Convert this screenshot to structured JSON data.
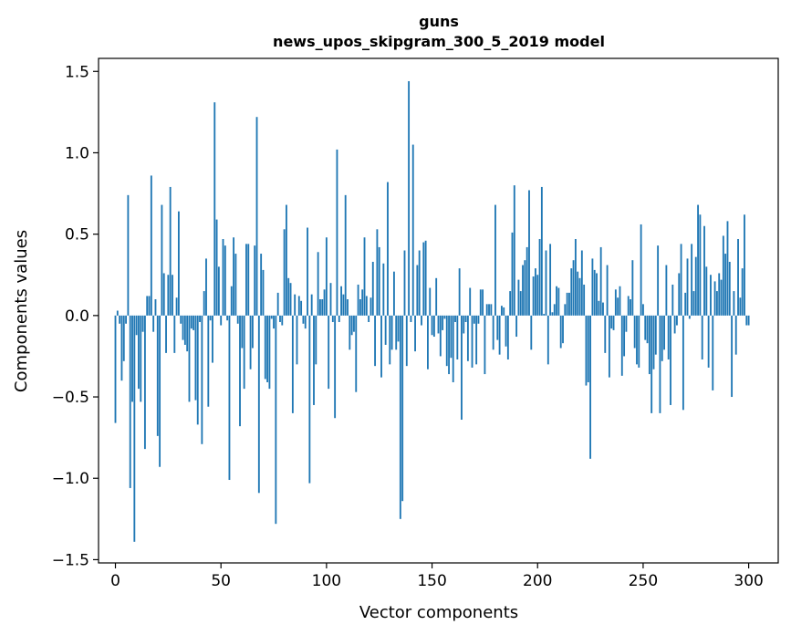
{
  "chart_data": {
    "type": "bar",
    "title": "guns",
    "subtitle": "news_upos_skipgram_300_5_2019 model",
    "xlabel": "Vector components",
    "ylabel": "Components values",
    "xlim": [
      -8,
      314
    ],
    "ylim": [
      -1.52,
      1.58
    ],
    "xticks": [
      0,
      50,
      100,
      150,
      200,
      250,
      300
    ],
    "yticks": [
      -1.5,
      -1.0,
      -0.5,
      0.0,
      0.5,
      1.0,
      1.5
    ],
    "ytick_labels": [
      "−1.5",
      "−1.0",
      "−0.5",
      "0.0",
      "0.5",
      "1.0",
      "1.5"
    ],
    "bar_color": "#1f77b4",
    "x": [
      0,
      1,
      2,
      3,
      4,
      5,
      6,
      7,
      8,
      9,
      10,
      11,
      12,
      13,
      14,
      15,
      16,
      17,
      18,
      19,
      20,
      21,
      22,
      23,
      24,
      25,
      26,
      27,
      28,
      29,
      30,
      31,
      32,
      33,
      34,
      35,
      36,
      37,
      38,
      39,
      40,
      41,
      42,
      43,
      44,
      45,
      46,
      47,
      48,
      49,
      50,
      51,
      52,
      53,
      54,
      55,
      56,
      57,
      58,
      59,
      60,
      61,
      62,
      63,
      64,
      65,
      66,
      67,
      68,
      69,
      70,
      71,
      72,
      73,
      74,
      75,
      76,
      77,
      78,
      79,
      80,
      81,
      82,
      83,
      84,
      85,
      86,
      87,
      88,
      89,
      90,
      91,
      92,
      93,
      94,
      95,
      96,
      97,
      98,
      99,
      100,
      101,
      102,
      103,
      104,
      105,
      106,
      107,
      108,
      109,
      110,
      111,
      112,
      113,
      114,
      115,
      116,
      117,
      118,
      119,
      120,
      121,
      122,
      123,
      124,
      125,
      126,
      127,
      128,
      129,
      130,
      131,
      132,
      133,
      134,
      135,
      136,
      137,
      138,
      139,
      140,
      141,
      142,
      143,
      144,
      145,
      146,
      147,
      148,
      149,
      150,
      151,
      152,
      153,
      154,
      155,
      156,
      157,
      158,
      159,
      160,
      161,
      162,
      163,
      164,
      165,
      166,
      167,
      168,
      169,
      170,
      171,
      172,
      173,
      174,
      175,
      176,
      177,
      178,
      179,
      180,
      181,
      182,
      183,
      184,
      185,
      186,
      187,
      188,
      189,
      190,
      191,
      192,
      193,
      194,
      195,
      196,
      197,
      198,
      199,
      200,
      201,
      202,
      203,
      204,
      205,
      206,
      207,
      208,
      209,
      210,
      211,
      212,
      213,
      214,
      215,
      216,
      217,
      218,
      219,
      220,
      221,
      222,
      223,
      224,
      225,
      226,
      227,
      228,
      229,
      230,
      231,
      232,
      233,
      234,
      235,
      236,
      237,
      238,
      239,
      240,
      241,
      242,
      243,
      244,
      245,
      246,
      247,
      248,
      249,
      250,
      251,
      252,
      253,
      254,
      255,
      256,
      257,
      258,
      259,
      260,
      261,
      262,
      263,
      264,
      265,
      266,
      267,
      268,
      269,
      270,
      271,
      272,
      273,
      274,
      275,
      276,
      277,
      278,
      279,
      280,
      281,
      282,
      283,
      284,
      285,
      286,
      287,
      288,
      289,
      290,
      291,
      292,
      293,
      294,
      295,
      296,
      297,
      298,
      299
    ],
    "values": [
      -0.66,
      0.03,
      -0.05,
      -0.4,
      -0.28,
      -0.05,
      0.74,
      -1.06,
      -0.53,
      -1.39,
      -0.12,
      -0.45,
      -0.53,
      -0.1,
      -0.82,
      0.12,
      0.12,
      0.86,
      -0.1,
      0.1,
      -0.74,
      -0.93,
      0.68,
      0.26,
      -0.23,
      0.25,
      0.79,
      0.25,
      -0.23,
      0.11,
      0.64,
      -0.05,
      -0.15,
      -0.18,
      -0.22,
      -0.53,
      -0.08,
      -0.09,
      -0.52,
      -0.67,
      -0.04,
      -0.79,
      0.15,
      0.35,
      -0.56,
      -0.03,
      -0.29,
      1.31,
      0.59,
      0.3,
      -0.06,
      0.47,
      0.43,
      -0.03,
      -1.01,
      0.18,
      0.48,
      0.38,
      -0.05,
      -0.68,
      -0.2,
      -0.45,
      0.44,
      0.44,
      -0.33,
      -0.2,
      0.43,
      1.22,
      -1.09,
      0.38,
      0.28,
      -0.39,
      -0.41,
      -0.45,
      -0.02,
      -0.08,
      -1.28,
      0.14,
      -0.04,
      -0.06,
      0.53,
      0.68,
      0.23,
      0.2,
      -0.6,
      0.13,
      -0.3,
      0.12,
      0.09,
      -0.05,
      -0.08,
      0.54,
      -1.03,
      0.13,
      -0.55,
      -0.3,
      0.39,
      0.1,
      0.1,
      0.16,
      0.48,
      -0.45,
      0.2,
      -0.04,
      -0.63,
      1.02,
      -0.04,
      0.18,
      0.13,
      0.74,
      0.1,
      -0.21,
      -0.12,
      -0.1,
      -0.47,
      0.19,
      0.1,
      0.16,
      0.48,
      0.12,
      -0.04,
      0.11,
      0.33,
      -0.31,
      0.53,
      0.42,
      -0.38,
      0.32,
      -0.18,
      0.82,
      -0.3,
      -0.21,
      0.27,
      -0.21,
      -0.16,
      -1.25,
      -1.14,
      0.4,
      -0.31,
      1.44,
      -0.04,
      1.05,
      -0.22,
      0.31,
      0.4,
      -0.06,
      0.45,
      0.46,
      -0.33,
      0.17,
      -0.12,
      -0.13,
      0.23,
      -0.11,
      -0.25,
      -0.09,
      -0.02,
      -0.31,
      -0.36,
      -0.26,
      -0.41,
      -0.04,
      -0.27,
      0.29,
      -0.64,
      -0.11,
      -0.04,
      -0.28,
      0.17,
      -0.32,
      -0.05,
      -0.3,
      -0.05,
      0.16,
      0.16,
      -0.36,
      0.07,
      0.07,
      0.07,
      -0.21,
      0.68,
      -0.15,
      -0.24,
      0.06,
      0.05,
      -0.19,
      -0.27,
      0.15,
      0.51,
      0.8,
      -0.13,
      0.22,
      0.15,
      0.31,
      0.34,
      0.42,
      0.77,
      -0.21,
      0.24,
      0.29,
      0.25,
      0.47,
      0.79,
      0.01,
      0.4,
      -0.3,
      0.44,
      0.02,
      0.07,
      0.18,
      0.17,
      -0.2,
      -0.17,
      0.07,
      0.14,
      0.14,
      0.29,
      0.34,
      0.47,
      0.27,
      0.23,
      0.4,
      0.19,
      -0.43,
      -0.41,
      -0.88,
      0.35,
      0.28,
      0.26,
      0.09,
      0.42,
      0.08,
      -0.23,
      0.31,
      -0.38,
      -0.08,
      -0.09,
      0.16,
      0.11,
      0.18,
      -0.37,
      -0.25,
      -0.1,
      0.12,
      0.1,
      0.34,
      -0.2,
      -0.3,
      -0.32,
      0.56,
      0.07,
      -0.15,
      -0.17,
      -0.36,
      -0.6,
      -0.33,
      -0.24,
      0.43,
      -0.6,
      -0.28,
      -0.21,
      0.31,
      -0.27,
      -0.55,
      0.19,
      -0.11,
      -0.06,
      0.26,
      0.44,
      -0.58,
      0.14,
      0.35,
      -0.02,
      0.44,
      0.15,
      0.36,
      0.68,
      0.62,
      -0.27,
      0.55,
      0.3,
      -0.32,
      0.25,
      -0.46,
      0.21,
      0.15,
      0.26,
      0.22,
      0.49,
      0.38,
      0.58,
      0.33,
      -0.5,
      0.15,
      -0.24,
      0.47,
      0.11,
      0.29,
      0.62,
      -0.06
    ],
    "tail_x": [
      300
    ],
    "tail_values": [
      -0.06
    ]
  }
}
